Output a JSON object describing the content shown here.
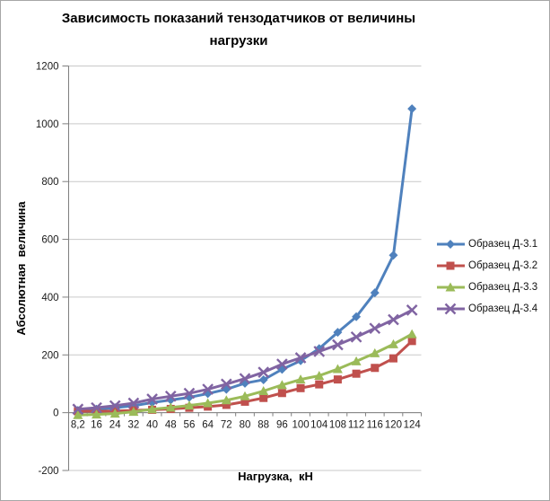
{
  "chart_data": {
    "type": "line",
    "title": "Зависимость показаний тензодатчиков от величины нагрузки",
    "categories": [
      "8,2",
      "16",
      "24",
      "32",
      "40",
      "48",
      "56",
      "64",
      "72",
      "80",
      "88",
      "96",
      "100",
      "104",
      "108",
      "112",
      "116",
      "120",
      "124"
    ],
    "series": [
      {
        "id": "d-3-1",
        "name": "Образец Д-3.1",
        "color": "#4F81BD",
        "marker": "diamond",
        "values": [
          8,
          12,
          17,
          24,
          35,
          44,
          53,
          66,
          81,
          102,
          114,
          150,
          180,
          222,
          278,
          332,
          415,
          545,
          1052
        ]
      },
      {
        "id": "d-3-2",
        "name": "Образец Д-3.2",
        "color": "#C0504D",
        "marker": "square",
        "values": [
          5,
          5,
          6,
          8,
          10,
          13,
          17,
          21,
          27,
          38,
          51,
          68,
          85,
          98,
          115,
          135,
          155,
          188,
          248
        ]
      },
      {
        "id": "d-3-3",
        "name": "Образец Д-3.3",
        "color": "#9BBB59",
        "marker": "triangle",
        "values": [
          -8,
          -6,
          -3,
          3,
          12,
          18,
          25,
          33,
          43,
          57,
          75,
          96,
          115,
          128,
          151,
          178,
          206,
          237,
          272
        ]
      },
      {
        "id": "d-3-4",
        "name": "Образец Д-3.4",
        "color": "#8064A2",
        "marker": "x-cross",
        "values": [
          12,
          17,
          24,
          33,
          47,
          57,
          67,
          81,
          99,
          118,
          140,
          168,
          190,
          212,
          235,
          262,
          292,
          322,
          355
        ]
      }
    ],
    "xlabel": "Нагрузка,  кН",
    "ylabel": "Абсолютная  величина",
    "ylim": [
      -200,
      1200
    ],
    "ytick_step": 200,
    "ytick_labels": [
      "1200",
      "1000",
      "800",
      "600",
      "400",
      "200",
      "0",
      "-200"
    ],
    "grid": true,
    "legend_position": "right",
    "gridline_color": "#C9C9C9",
    "axis_color": "#7F7F7F"
  }
}
